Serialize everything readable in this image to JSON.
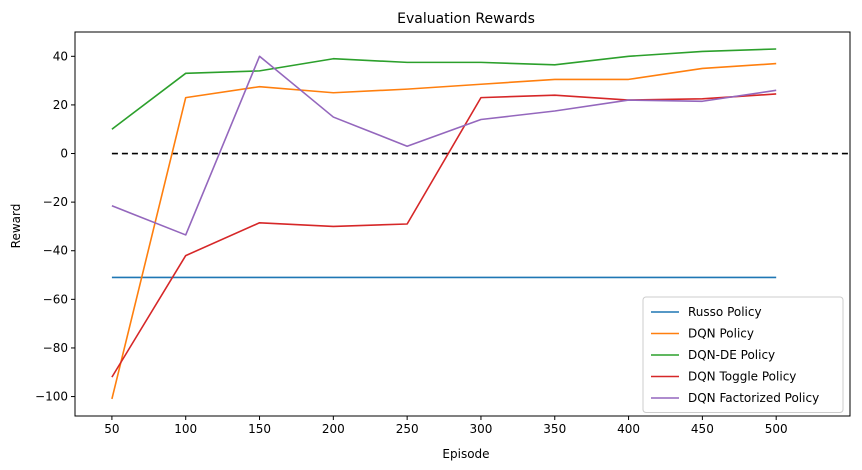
{
  "chart_data": {
    "type": "line",
    "title": "Evaluation Rewards",
    "xlabel": "Episode",
    "ylabel": "Reward",
    "x": [
      50,
      100,
      150,
      200,
      250,
      300,
      350,
      400,
      450,
      500
    ],
    "xlim": [
      25,
      550
    ],
    "ylim": [
      -108,
      50
    ],
    "xticks": [
      50,
      100,
      150,
      200,
      250,
      300,
      350,
      400,
      450,
      500
    ],
    "yticks": [
      -100,
      -80,
      -60,
      -40,
      -20,
      0,
      20,
      40
    ],
    "grid": false,
    "legend_position": "lower-right",
    "series": [
      {
        "name": "Russo Policy",
        "color": "#1f77b4",
        "values": [
          -51,
          -51,
          -51,
          -51,
          -51,
          -51,
          -51,
          -51,
          -51,
          -51
        ]
      },
      {
        "name": "DQN Policy",
        "color": "#ff7f0e",
        "values": [
          -101,
          23,
          27.5,
          25,
          26.5,
          28.5,
          30.5,
          30.5,
          35,
          37
        ]
      },
      {
        "name": "DQN-DE Policy",
        "color": "#2ca02c",
        "values": [
          10,
          33,
          34,
          39,
          37.5,
          37.5,
          36.5,
          40,
          42,
          43
        ]
      },
      {
        "name": "DQN Toggle Policy",
        "color": "#d62728",
        "values": [
          -92,
          -42,
          -28.5,
          -30,
          -29,
          23,
          24,
          22,
          22.5,
          24.5
        ]
      },
      {
        "name": "DQN Factorized Policy",
        "color": "#9467bd",
        "values": [
          -21.5,
          -33.5,
          40,
          15,
          3,
          14,
          17.5,
          22,
          21.5,
          26
        ]
      }
    ],
    "reference_line": {
      "y": 0,
      "x_range": [
        50,
        550
      ],
      "color": "#000000",
      "style": "dashed"
    }
  }
}
